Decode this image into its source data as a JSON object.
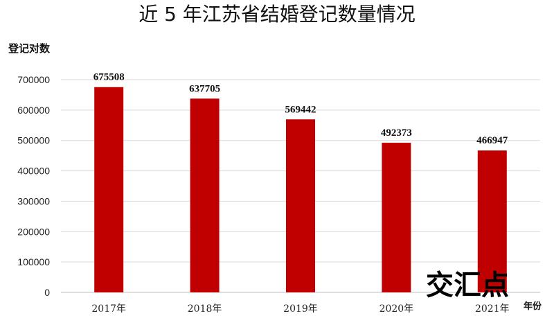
{
  "colors": {
    "bar": "#c00000",
    "grid": "#d9d9d9",
    "axis": "#bfbfbf"
  },
  "watermark": "交汇点",
  "chart_data": {
    "type": "bar",
    "title": "近 5 年江苏省结婚登记数量情况",
    "ylabel": "登记对数",
    "xlabel": "年份",
    "categories": [
      "2017年",
      "2018年",
      "2019年",
      "2020年",
      "2021年"
    ],
    "values": [
      675508,
      637705,
      569442,
      492373,
      466947
    ],
    "ylim": [
      0,
      700000
    ],
    "yticks": [
      "0",
      "100000",
      "200000",
      "300000",
      "400000",
      "500000",
      "600000",
      "700000"
    ],
    "grid": true,
    "legend": "none"
  }
}
